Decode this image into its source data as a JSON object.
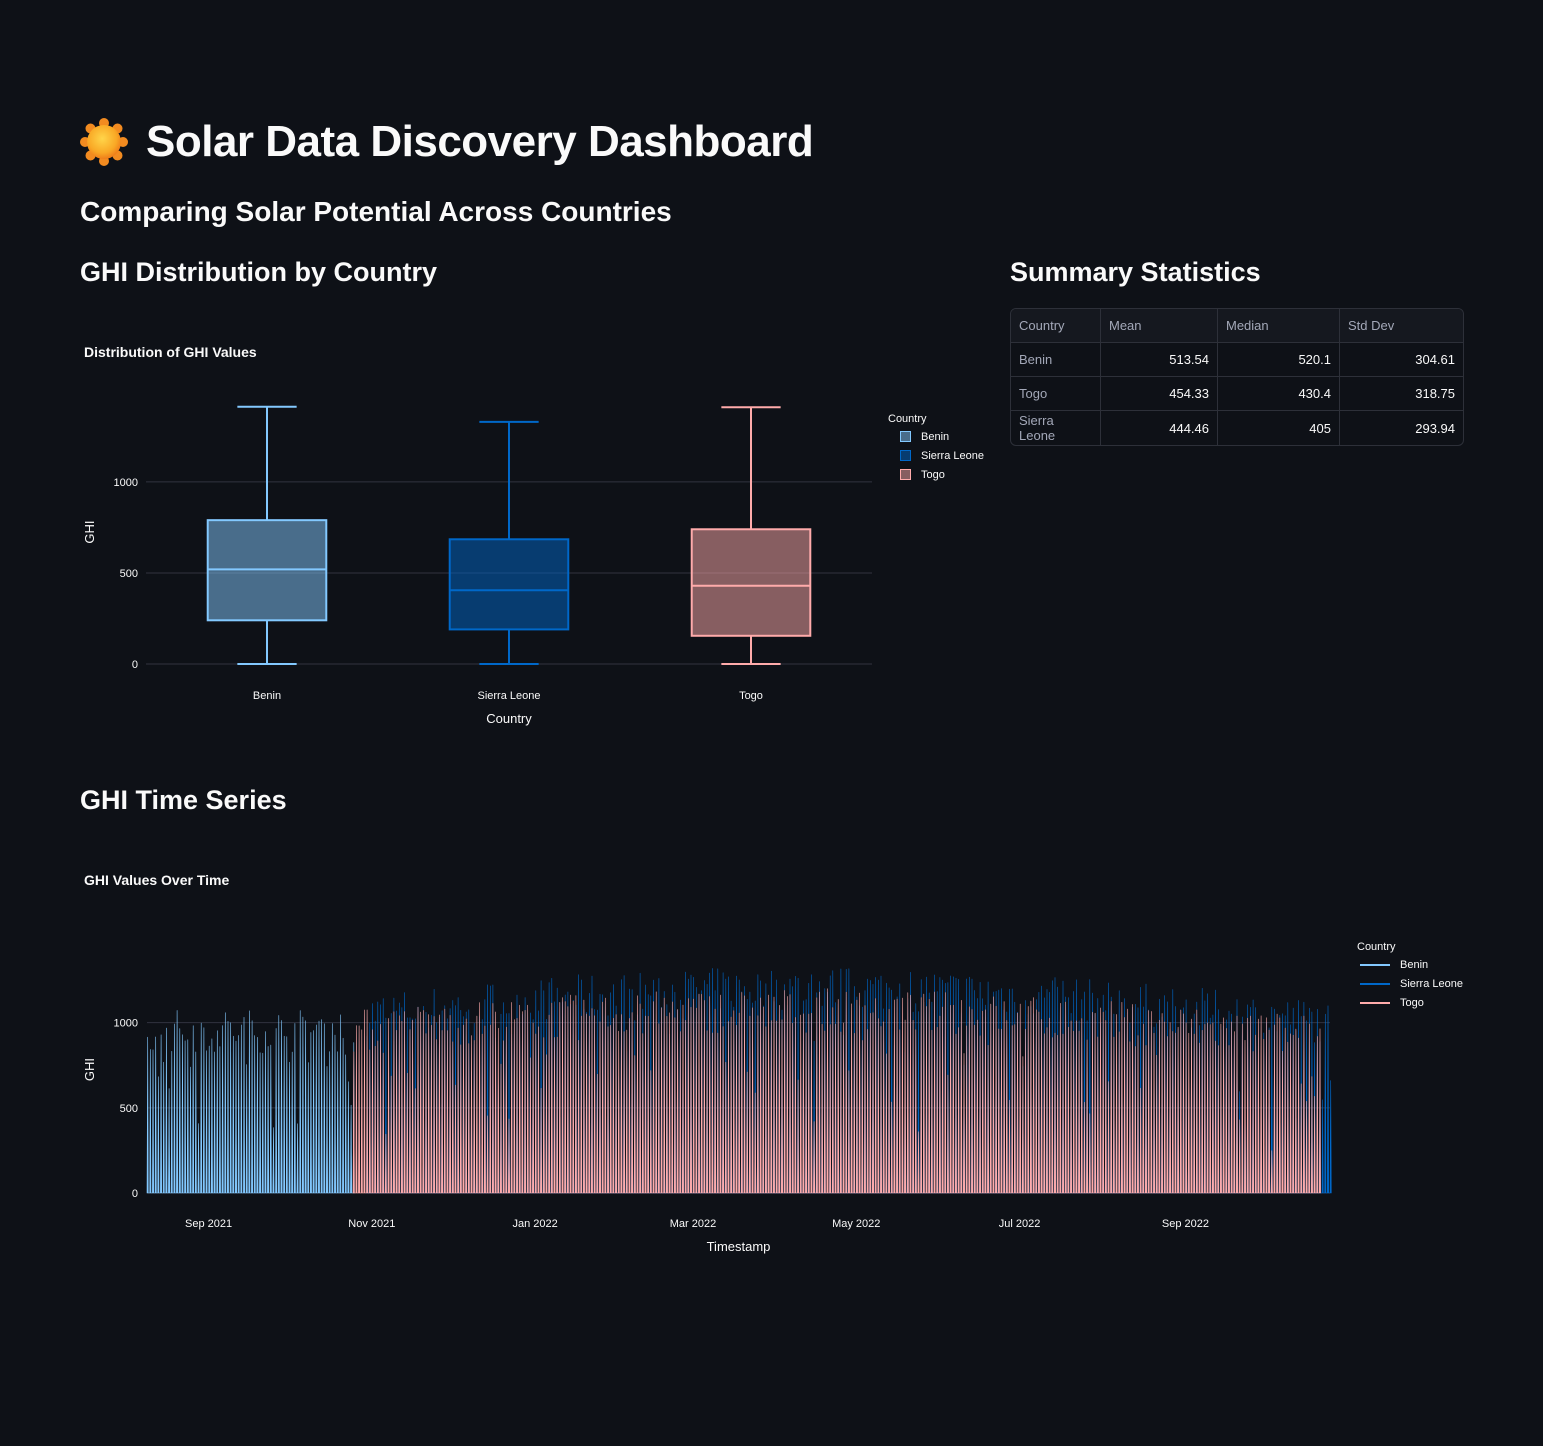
{
  "page": {
    "title": "Solar Data Discovery Dashboard",
    "subtitle": "Comparing Solar Potential Across Countries",
    "box_section_title": "GHI Distribution by Country",
    "stats_section_title": "Summary Statistics",
    "ts_section_title": "GHI Time Series"
  },
  "stats_table": {
    "columns": [
      "Country",
      "Mean",
      "Median",
      "Std Dev"
    ],
    "rows": [
      [
        "Benin",
        "513.54",
        "520.1",
        "304.61"
      ],
      [
        "Togo",
        "454.33",
        "430.4",
        "318.75"
      ],
      [
        "Sierra Leone",
        "444.46",
        "405",
        "293.94"
      ]
    ]
  },
  "colors": {
    "Benin": "#83c9ff",
    "Sierra Leone": "#0068c9",
    "Togo": "#ffabab",
    "background": "#0e1117",
    "grid": "#31333f"
  },
  "chart_data": [
    {
      "type": "box",
      "title": "Distribution of GHI Values",
      "xlabel": "Country",
      "ylabel": "GHI",
      "ylim": [
        0,
        1450
      ],
      "yticks": [
        "0",
        "500",
        "1000"
      ],
      "legend_title": "Country",
      "legend_position": "right",
      "categories": [
        "Benin",
        "Sierra Leone",
        "Togo"
      ],
      "series": [
        {
          "name": "Benin",
          "min": 0,
          "q1": 240,
          "median": 520,
          "q3": 790,
          "max": 1413
        },
        {
          "name": "Sierra Leone",
          "min": 0,
          "q1": 190,
          "median": 405,
          "q3": 685,
          "max": 1330
        },
        {
          "name": "Togo",
          "min": 0,
          "q1": 155,
          "median": 430,
          "q3": 740,
          "max": 1410
        }
      ]
    },
    {
      "type": "line",
      "title": "GHI Values Over Time",
      "xlabel": "Timestamp",
      "ylabel": "GHI",
      "ylim": [
        0,
        1450
      ],
      "yticks": [
        "0",
        "500",
        "1000"
      ],
      "xticks": [
        "Sep 2021",
        "Nov 2021",
        "Jan 2022",
        "Mar 2022",
        "May 2022",
        "Jul 2022",
        "Sep 2022"
      ],
      "xrange": [
        "2021-08-09",
        "2022-10-25"
      ],
      "legend_title": "Country",
      "legend_position": "right",
      "series": [
        {
          "name": "Benin",
          "start": "2021-08-09",
          "end": "2021-10-25",
          "typical_daily_peak": 950
        },
        {
          "name": "Sierra Leone",
          "start": "2021-10-30",
          "end": "2022-10-25",
          "typical_daily_peak": 1150
        },
        {
          "name": "Togo",
          "start": "2021-10-25",
          "end": "2022-10-21",
          "typical_daily_peak": 1050
        }
      ]
    }
  ]
}
